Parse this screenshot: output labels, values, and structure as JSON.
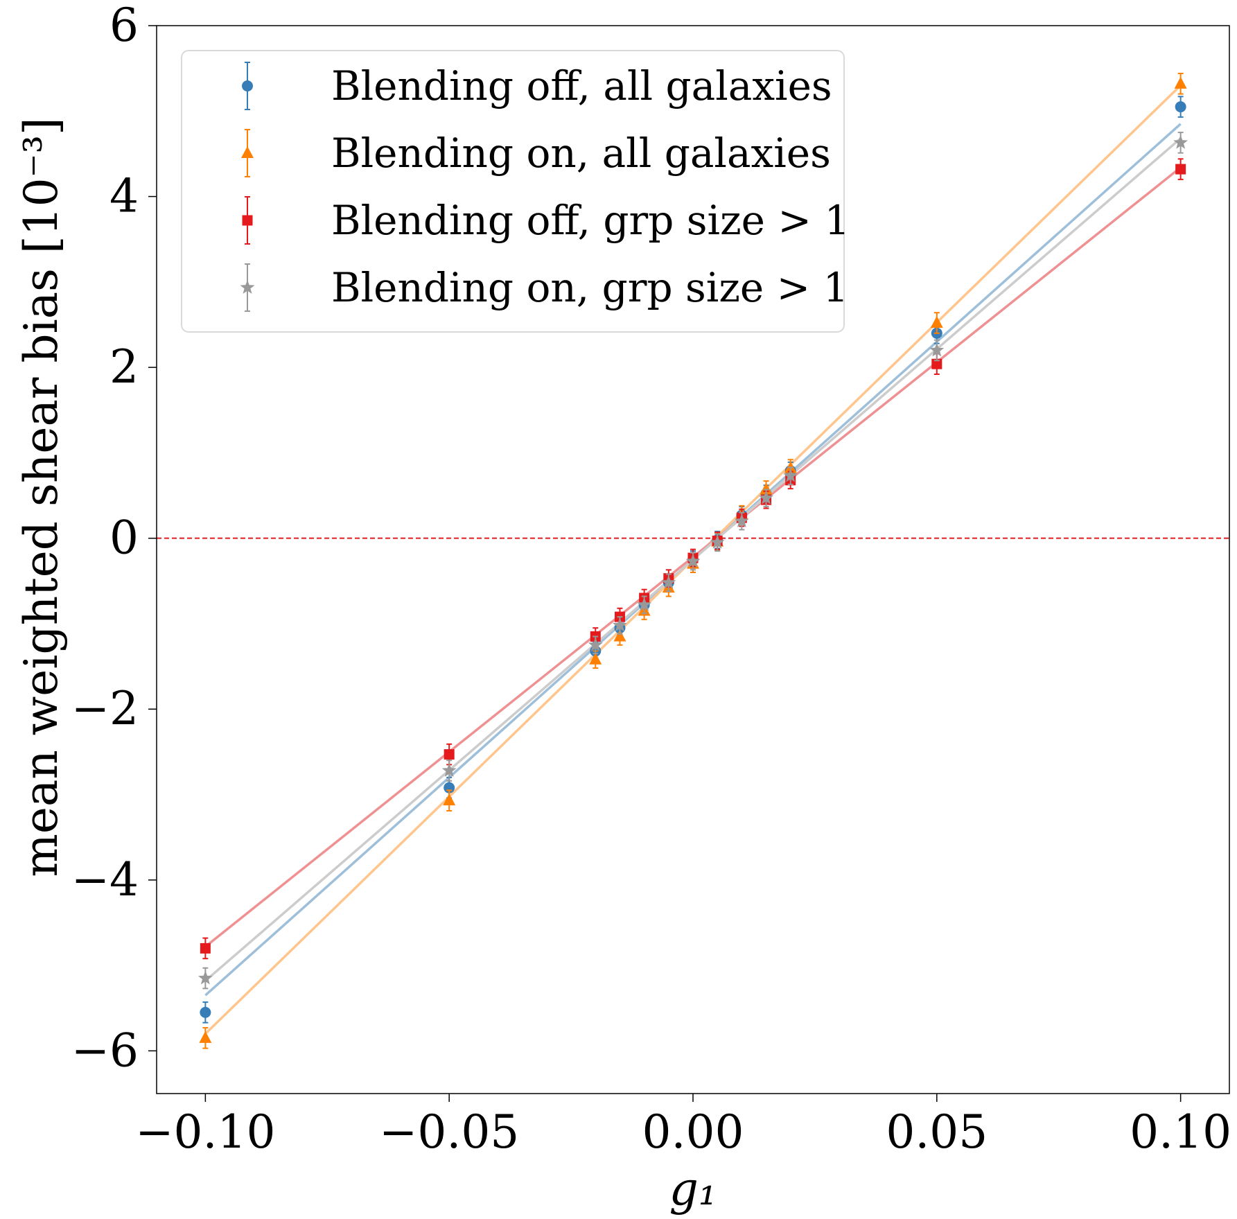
{
  "chart_data": {
    "type": "scatter",
    "title": "",
    "xlabel": "g₁",
    "ylabel": "mean weighted shear bias [10⁻³]",
    "xlim": [
      -0.11,
      0.11
    ],
    "ylim": [
      -6.5,
      6.0
    ],
    "x_ticks": [
      -0.1,
      -0.05,
      0.0,
      0.05,
      0.1
    ],
    "x_tick_labels": [
      "−0.10",
      "−0.05",
      "0.00",
      "0.05",
      "0.10"
    ],
    "y_ticks": [
      -6,
      -4,
      -2,
      0,
      2,
      4,
      6
    ],
    "y_tick_labels": [
      "−6",
      "−4",
      "−2",
      "0",
      "2",
      "4",
      "6"
    ],
    "grid": false,
    "legend_position": "top-left",
    "reference_line": {
      "y": 0,
      "style": "dashed",
      "color": "#e41a1c"
    },
    "x": [
      -0.1,
      -0.05,
      -0.02,
      -0.015,
      -0.01,
      -0.005,
      0.0,
      0.005,
      0.01,
      0.015,
      0.02,
      0.05,
      0.1
    ],
    "series": [
      {
        "name": "Blending off, all galaxies",
        "color": "#377eb8",
        "line_color": "#9ebfda",
        "marker": "circle",
        "values": [
          -5.55,
          -2.92,
          -1.32,
          -1.05,
          -0.78,
          -0.52,
          -0.25,
          -0.02,
          0.27,
          0.52,
          0.79,
          2.4,
          5.05
        ],
        "errors": [
          0.12,
          0.12,
          0.1,
          0.1,
          0.1,
          0.1,
          0.1,
          0.1,
          0.1,
          0.1,
          0.1,
          0.12,
          0.12
        ],
        "fit": {
          "slope": 51.0,
          "intercept": -0.25
        }
      },
      {
        "name": "Blending on, all galaxies",
        "color": "#ff7f00",
        "line_color": "#ffc58c",
        "marker": "triangle",
        "values": [
          -5.85,
          -3.07,
          -1.42,
          -1.15,
          -0.85,
          -0.58,
          -0.3,
          -0.04,
          0.28,
          0.57,
          0.82,
          2.52,
          5.32
        ],
        "errors": [
          0.12,
          0.12,
          0.1,
          0.1,
          0.1,
          0.1,
          0.1,
          0.1,
          0.1,
          0.1,
          0.1,
          0.12,
          0.12
        ],
        "fit": {
          "slope": 55.5,
          "intercept": -0.25
        }
      },
      {
        "name": "Blending off, grp size > 1",
        "color": "#e41a1c",
        "line_color": "#ef9192",
        "marker": "square",
        "values": [
          -4.8,
          -2.53,
          -1.15,
          -0.92,
          -0.7,
          -0.47,
          -0.23,
          -0.03,
          0.24,
          0.45,
          0.68,
          2.04,
          4.32
        ],
        "errors": [
          0.12,
          0.12,
          0.1,
          0.1,
          0.1,
          0.1,
          0.1,
          0.1,
          0.1,
          0.1,
          0.1,
          0.12,
          0.12
        ],
        "fit": {
          "slope": 45.6,
          "intercept": -0.22
        }
      },
      {
        "name": "Blending on, grp size > 1",
        "color": "#999999",
        "line_color": "#cccccc",
        "marker": "star",
        "values": [
          -5.15,
          -2.72,
          -1.25,
          -1.02,
          -0.78,
          -0.52,
          -0.27,
          -0.05,
          0.2,
          0.47,
          0.73,
          2.2,
          4.63
        ],
        "errors": [
          0.12,
          0.12,
          0.1,
          0.1,
          0.1,
          0.1,
          0.1,
          0.1,
          0.1,
          0.1,
          0.1,
          0.12,
          0.12
        ],
        "fit": {
          "slope": 49.3,
          "intercept": -0.25
        }
      }
    ]
  }
}
